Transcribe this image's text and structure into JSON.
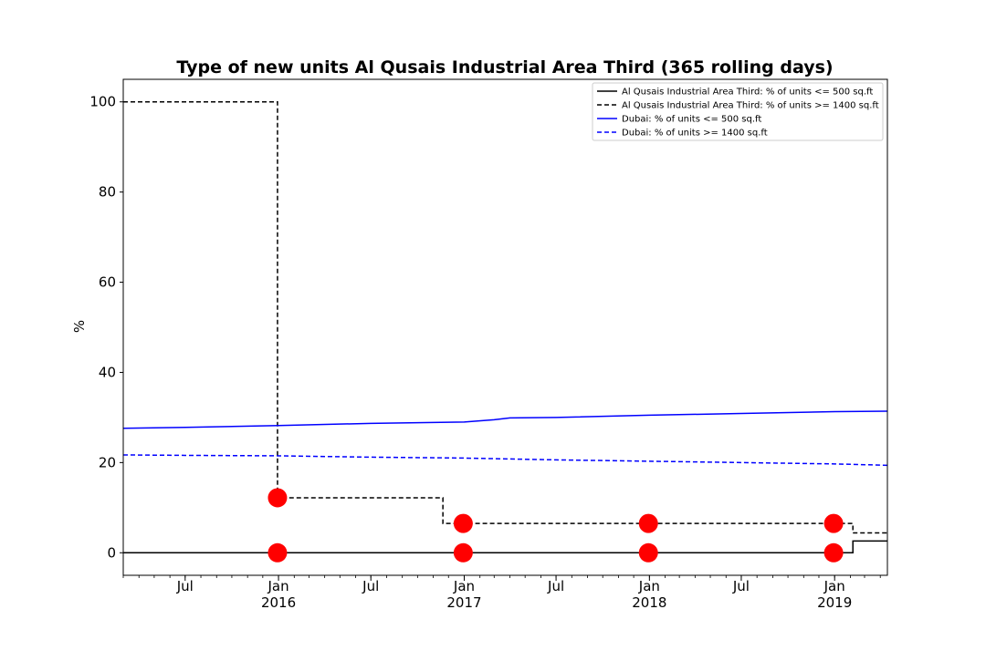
{
  "chart_data": {
    "type": "line",
    "title": "Type of new units Al Qusais Industrial Area Third (365 rolling days)",
    "xlabel": "",
    "ylabel": "%",
    "xlim": [
      "2015-03-01",
      "2019-04-15"
    ],
    "ylim": [
      -5,
      105
    ],
    "yticks": [
      0,
      20,
      40,
      60,
      80,
      100
    ],
    "xticks": [
      {
        "date": "2015-07-01",
        "label": "Jul",
        "sublabel": ""
      },
      {
        "date": "2016-01-01",
        "label": "Jan",
        "sublabel": "2016"
      },
      {
        "date": "2016-07-01",
        "label": "Jul",
        "sublabel": ""
      },
      {
        "date": "2017-01-01",
        "label": "Jan",
        "sublabel": "2017"
      },
      {
        "date": "2017-07-01",
        "label": "Jul",
        "sublabel": ""
      },
      {
        "date": "2018-01-01",
        "label": "Jan",
        "sublabel": "2018"
      },
      {
        "date": "2018-07-01",
        "label": "Jul",
        "sublabel": ""
      },
      {
        "date": "2019-01-01",
        "label": "Jan",
        "sublabel": "2019"
      }
    ],
    "grid": false,
    "legend_position": "top-right",
    "series": [
      {
        "name": "Al Qusais Industrial Area Third: % of units <= 500 sq.ft",
        "color": "#000000",
        "style": "solid",
        "step": true,
        "points": [
          {
            "x": "2015-03-01",
            "y": 0
          },
          {
            "x": "2019-02-06",
            "y": 2.6
          },
          {
            "x": "2019-04-15",
            "y": 2.6
          }
        ]
      },
      {
        "name": "Al Qusais Industrial Area Third: % of units >= 1400 sq.ft",
        "color": "#000000",
        "style": "dashed",
        "step": true,
        "points": [
          {
            "x": "2015-03-01",
            "y": 100
          },
          {
            "x": "2015-12-30",
            "y": 12.2
          },
          {
            "x": "2016-11-20",
            "y": 6.5
          },
          {
            "x": "2019-02-06",
            "y": 4.4
          },
          {
            "x": "2019-04-15",
            "y": 4.4
          }
        ]
      },
      {
        "name": "Dubai: % of units <= 500 sq.ft",
        "color": "#0000ff",
        "style": "solid",
        "step": false,
        "points": [
          {
            "x": "2015-03-01",
            "y": 27.6
          },
          {
            "x": "2015-07-01",
            "y": 27.8
          },
          {
            "x": "2016-01-01",
            "y": 28.2
          },
          {
            "x": "2016-07-01",
            "y": 28.7
          },
          {
            "x": "2017-01-01",
            "y": 29.0
          },
          {
            "x": "2017-03-01",
            "y": 29.5
          },
          {
            "x": "2017-04-01",
            "y": 29.9
          },
          {
            "x": "2017-07-01",
            "y": 30.0
          },
          {
            "x": "2018-01-01",
            "y": 30.5
          },
          {
            "x": "2018-07-01",
            "y": 30.9
          },
          {
            "x": "2019-01-01",
            "y": 31.3
          },
          {
            "x": "2019-04-15",
            "y": 31.4
          }
        ]
      },
      {
        "name": "Dubai: % of units >= 1400 sq.ft",
        "color": "#0000ff",
        "style": "dashed",
        "step": false,
        "points": [
          {
            "x": "2015-03-01",
            "y": 21.7
          },
          {
            "x": "2015-07-01",
            "y": 21.6
          },
          {
            "x": "2016-01-01",
            "y": 21.5
          },
          {
            "x": "2016-07-01",
            "y": 21.2
          },
          {
            "x": "2017-01-01",
            "y": 21.0
          },
          {
            "x": "2017-07-01",
            "y": 20.6
          },
          {
            "x": "2018-01-01",
            "y": 20.3
          },
          {
            "x": "2018-07-01",
            "y": 20.0
          },
          {
            "x": "2019-01-01",
            "y": 19.7
          },
          {
            "x": "2019-04-15",
            "y": 19.4
          }
        ]
      }
    ],
    "markers": {
      "color": "#ff0000",
      "points": [
        {
          "x": "2015-12-30",
          "y": 0
        },
        {
          "x": "2015-12-30",
          "y": 12.2
        },
        {
          "x": "2016-12-30",
          "y": 0
        },
        {
          "x": "2016-12-30",
          "y": 6.5
        },
        {
          "x": "2017-12-30",
          "y": 0
        },
        {
          "x": "2017-12-30",
          "y": 6.5
        },
        {
          "x": "2018-12-30",
          "y": 0
        },
        {
          "x": "2018-12-30",
          "y": 6.5
        }
      ]
    }
  }
}
